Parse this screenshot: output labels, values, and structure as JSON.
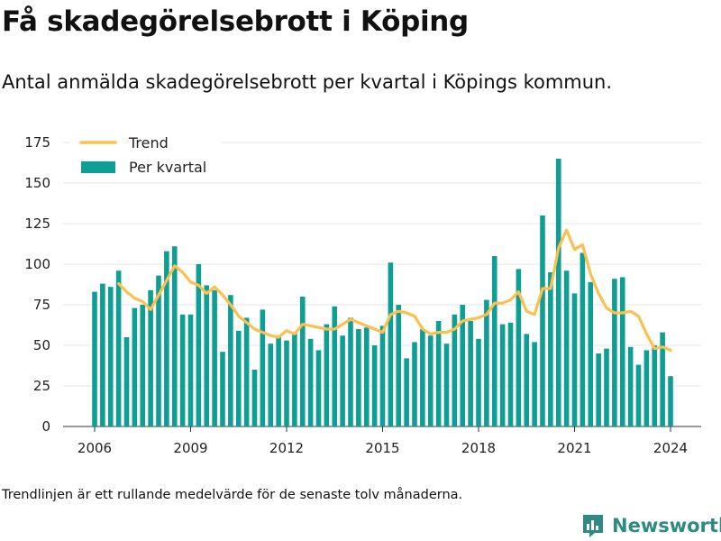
{
  "header": {
    "title": "Få skadegörelsebrott i Köping",
    "subtitle": "Antal anmälda skadegörelsebrott per kvartal i Köpings kommun."
  },
  "footer": {
    "note": "Trendlinjen är ett rullande medelvärde för de senaste tolv månaderna.",
    "brand": "Newsworthy"
  },
  "colors": {
    "bar": "#0f9e93",
    "trend": "#fbc04f",
    "grid": "#e6e6e6",
    "brand": "#2e8a83"
  },
  "chart_data": {
    "type": "bar",
    "title": "Få skadegörelsebrott i Köping",
    "subtitle": "Antal anmälda skadegörelsebrott per kvartal i Köpings kommun.",
    "xlabel": "",
    "ylabel": "",
    "ylim": [
      0,
      175
    ],
    "yticks": [
      0,
      25,
      50,
      75,
      100,
      125,
      150,
      175
    ],
    "xticks": [
      "2006",
      "2009",
      "2012",
      "2015",
      "2018",
      "2021",
      "2024"
    ],
    "grid": true,
    "legend_position": "top-left",
    "categories": [
      "2006 Q1",
      "2006 Q2",
      "2006 Q3",
      "2006 Q4",
      "2007 Q1",
      "2007 Q2",
      "2007 Q3",
      "2007 Q4",
      "2008 Q1",
      "2008 Q2",
      "2008 Q3",
      "2008 Q4",
      "2009 Q1",
      "2009 Q2",
      "2009 Q3",
      "2009 Q4",
      "2010 Q1",
      "2010 Q2",
      "2010 Q3",
      "2010 Q4",
      "2011 Q1",
      "2011 Q2",
      "2011 Q3",
      "2011 Q4",
      "2012 Q1",
      "2012 Q2",
      "2012 Q3",
      "2012 Q4",
      "2013 Q1",
      "2013 Q2",
      "2013 Q3",
      "2013 Q4",
      "2014 Q1",
      "2014 Q2",
      "2014 Q3",
      "2014 Q4",
      "2015 Q1",
      "2015 Q2",
      "2015 Q3",
      "2015 Q4",
      "2016 Q1",
      "2016 Q2",
      "2016 Q3",
      "2016 Q4",
      "2017 Q1",
      "2017 Q2",
      "2017 Q3",
      "2017 Q4",
      "2018 Q1",
      "2018 Q2",
      "2018 Q3",
      "2018 Q4",
      "2019 Q1",
      "2019 Q2",
      "2019 Q3",
      "2019 Q4",
      "2020 Q1",
      "2020 Q2",
      "2020 Q3",
      "2020 Q4",
      "2021 Q1",
      "2021 Q2",
      "2021 Q3",
      "2021 Q4",
      "2022 Q1",
      "2022 Q2",
      "2022 Q3",
      "2022 Q4",
      "2023 Q1",
      "2023 Q2",
      "2023 Q3",
      "2023 Q4",
      "2024 Q1"
    ],
    "series": [
      {
        "name": "Per kvartal",
        "type": "bar",
        "values": [
          83,
          88,
          86,
          96,
          55,
          73,
          75,
          84,
          93,
          108,
          111,
          69,
          69,
          100,
          87,
          84,
          46,
          81,
          59,
          67,
          35,
          72,
          51,
          56,
          53,
          58,
          80,
          54,
          47,
          63,
          74,
          56,
          67,
          60,
          61,
          50,
          62,
          101,
          75,
          42,
          52,
          60,
          56,
          65,
          51,
          69,
          75,
          65,
          54,
          78,
          105,
          63,
          64,
          97,
          57,
          52,
          130,
          95,
          165,
          96,
          82,
          107,
          89,
          45,
          48,
          91,
          92,
          49,
          38,
          47,
          50,
          58,
          31
        ]
      },
      {
        "name": "Trend",
        "type": "line",
        "values": [
          null,
          null,
          null,
          88,
          83,
          79,
          77,
          72,
          81,
          90,
          99,
          95,
          89,
          87,
          82,
          86,
          81,
          75,
          68,
          64,
          60,
          58,
          56,
          55,
          59,
          57,
          63,
          62,
          61,
          60,
          60,
          63,
          66,
          64,
          62,
          60,
          58,
          69,
          71,
          70,
          68,
          60,
          57,
          58,
          58,
          60,
          65,
          66,
          67,
          69,
          76,
          76,
          78,
          83,
          71,
          69,
          85,
          85,
          110,
          121,
          109,
          112,
          94,
          82,
          73,
          70,
          70,
          71,
          68,
          57,
          48,
          49,
          47
        ]
      }
    ]
  }
}
